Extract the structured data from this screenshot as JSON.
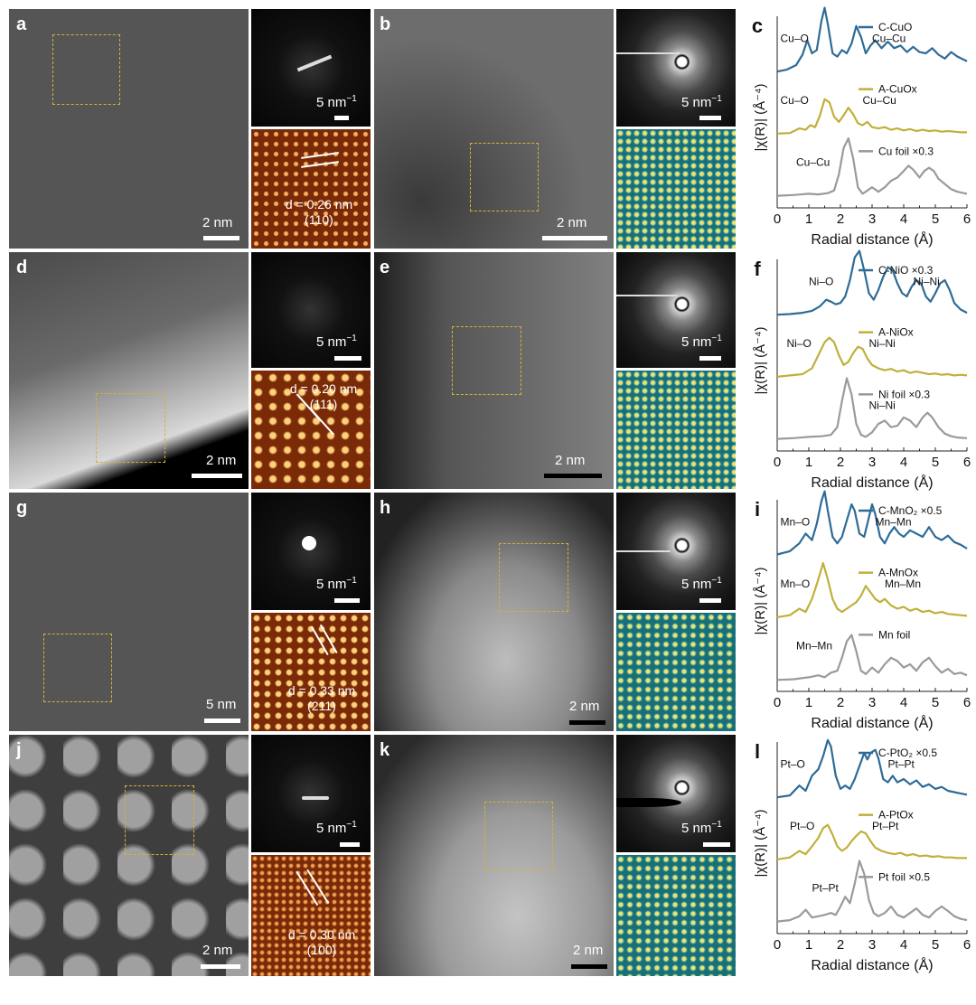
{
  "rows": [
    {
      "stem_crystal": {
        "letter": "a",
        "scale": "2 nm"
      },
      "saed_crystal": {
        "scale": "5 nm",
        "unit_sup": "−1"
      },
      "fft_crystal": {
        "d_label": "d = 0.26 nm",
        "plane": "(110)"
      },
      "stem_amorph": {
        "letter": "b",
        "scale": "2 nm"
      },
      "saed_amorph": {
        "scale": "5 nm",
        "unit_sup": "−1"
      }
    },
    {
      "stem_crystal": {
        "letter": "d",
        "scale": "2 nm"
      },
      "saed_crystal": {
        "scale": "5 nm",
        "unit_sup": "−1"
      },
      "fft_crystal": {
        "d_label": "d = 0.20 nm",
        "plane": "(111)"
      },
      "stem_amorph": {
        "letter": "e",
        "scale": "2 nm"
      },
      "saed_amorph": {
        "scale": "5 nm",
        "unit_sup": "−1"
      }
    },
    {
      "stem_crystal": {
        "letter": "g",
        "scale": "5 nm"
      },
      "saed_crystal": {
        "scale": "5 nm",
        "unit_sup": "−1"
      },
      "fft_crystal": {
        "d_label": "d = 0.33 nm",
        "plane": "(211)"
      },
      "stem_amorph": {
        "letter": "h",
        "scale": "2 nm"
      },
      "saed_amorph": {
        "scale": "5 nm",
        "unit_sup": "−1"
      }
    },
    {
      "stem_crystal": {
        "letter": "j",
        "scale": "2 nm"
      },
      "saed_crystal": {
        "scale": "5 nm",
        "unit_sup": "−1"
      },
      "fft_crystal": {
        "d_label": "d = 0.30 nm",
        "plane": "(100)"
      },
      "stem_amorph": {
        "letter": "k",
        "scale": "2 nm"
      },
      "saed_amorph": {
        "scale": "5 nm",
        "unit_sup": "−1"
      }
    }
  ],
  "colors": {
    "crystalline": "#2e6b96",
    "amorphous": "#c0b03a",
    "foil": "#9a9a9a",
    "box": "#d4b13a",
    "fft_crystal": "#7a2a07",
    "fft_amorph": "#1a6f77"
  },
  "chart_data": [
    {
      "type": "line",
      "letter": "c",
      "xlabel": "Radial distance (Å)",
      "ylabel": "|χ(R)| (Å⁻⁴)",
      "xlim": [
        0,
        6
      ],
      "xticks": [
        0,
        1,
        2,
        3,
        4,
        5,
        6
      ],
      "series": [
        {
          "name": "C-CuO",
          "x": [
            0,
            0.3,
            0.6,
            0.8,
            0.95,
            1.1,
            1.25,
            1.4,
            1.5,
            1.6,
            1.75,
            1.9,
            2.05,
            2.2,
            2.35,
            2.5,
            2.65,
            2.8,
            2.95,
            3.1,
            3.3,
            3.5,
            3.7,
            3.9,
            4.1,
            4.3,
            4.5,
            4.7,
            4.9,
            5.1,
            5.3,
            5.5,
            5.7,
            6.0
          ],
          "y": [
            0.02,
            0.05,
            0.12,
            0.28,
            0.5,
            0.3,
            0.35,
            0.8,
            1.0,
            0.75,
            0.3,
            0.25,
            0.35,
            0.3,
            0.45,
            0.72,
            0.55,
            0.3,
            0.42,
            0.5,
            0.38,
            0.48,
            0.38,
            0.42,
            0.32,
            0.4,
            0.32,
            0.3,
            0.38,
            0.28,
            0.22,
            0.32,
            0.25,
            0.18
          ]
        },
        {
          "name": "A-CuOx",
          "x": [
            0,
            0.4,
            0.7,
            0.9,
            1.05,
            1.2,
            1.35,
            1.5,
            1.65,
            1.8,
            1.95,
            2.1,
            2.25,
            2.4,
            2.55,
            2.7,
            2.85,
            3.0,
            3.2,
            3.4,
            3.6,
            3.8,
            4.0,
            4.2,
            4.4,
            4.6,
            4.8,
            5.0,
            5.2,
            5.4,
            5.6,
            5.8,
            6.0
          ],
          "y": [
            0.02,
            0.03,
            0.1,
            0.08,
            0.15,
            0.12,
            0.3,
            0.55,
            0.5,
            0.28,
            0.2,
            0.3,
            0.42,
            0.32,
            0.18,
            0.15,
            0.2,
            0.12,
            0.1,
            0.12,
            0.08,
            0.1,
            0.07,
            0.09,
            0.06,
            0.08,
            0.06,
            0.07,
            0.05,
            0.06,
            0.05,
            0.04,
            0.04
          ]
        },
        {
          "name": "Cu foil ×0.3",
          "x": [
            0,
            0.5,
            1.0,
            1.3,
            1.6,
            1.8,
            1.95,
            2.1,
            2.25,
            2.4,
            2.55,
            2.7,
            2.85,
            3.0,
            3.2,
            3.4,
            3.6,
            3.8,
            4.0,
            4.15,
            4.3,
            4.5,
            4.65,
            4.8,
            4.95,
            5.1,
            5.3,
            5.5,
            5.7,
            6.0
          ],
          "y": [
            0.02,
            0.03,
            0.05,
            0.04,
            0.06,
            0.1,
            0.35,
            0.75,
            0.9,
            0.6,
            0.15,
            0.05,
            0.1,
            0.15,
            0.08,
            0.15,
            0.25,
            0.3,
            0.4,
            0.48,
            0.42,
            0.3,
            0.4,
            0.45,
            0.4,
            0.28,
            0.2,
            0.12,
            0.08,
            0.05
          ]
        }
      ],
      "annotations": [
        "Cu–O",
        "Cu–Cu",
        "Cu–O",
        "Cu–Cu",
        "Cu–Cu"
      ]
    },
    {
      "type": "line",
      "letter": "f",
      "xlabel": "Radial distance (Å)",
      "ylabel": "|χ(R)| (Å⁻⁴)",
      "xlim": [
        0,
        6
      ],
      "xticks": [
        0,
        1,
        2,
        3,
        4,
        5,
        6
      ],
      "series": [
        {
          "name": "C-NiO ×0.3",
          "x": [
            0,
            0.4,
            0.8,
            1.1,
            1.35,
            1.55,
            1.7,
            1.85,
            2.0,
            2.15,
            2.3,
            2.45,
            2.6,
            2.75,
            2.9,
            3.05,
            3.2,
            3.35,
            3.5,
            3.65,
            3.8,
            3.95,
            4.1,
            4.25,
            4.4,
            4.55,
            4.7,
            4.85,
            5.0,
            5.15,
            5.3,
            5.45,
            5.6,
            5.8,
            6.0
          ],
          "y": [
            0.02,
            0.03,
            0.05,
            0.08,
            0.15,
            0.25,
            0.22,
            0.18,
            0.2,
            0.3,
            0.55,
            0.9,
            1.0,
            0.7,
            0.35,
            0.25,
            0.4,
            0.6,
            0.75,
            0.7,
            0.5,
            0.35,
            0.3,
            0.45,
            0.55,
            0.5,
            0.3,
            0.22,
            0.35,
            0.5,
            0.55,
            0.4,
            0.2,
            0.1,
            0.05
          ]
        },
        {
          "name": "A-NiOx",
          "x": [
            0,
            0.4,
            0.8,
            1.1,
            1.3,
            1.5,
            1.65,
            1.8,
            1.95,
            2.1,
            2.25,
            2.4,
            2.55,
            2.7,
            2.85,
            3.0,
            3.2,
            3.4,
            3.6,
            3.8,
            4.0,
            4.2,
            4.4,
            4.6,
            4.8,
            5.0,
            5.2,
            5.4,
            5.6,
            5.8,
            6.0
          ],
          "y": [
            0.02,
            0.04,
            0.06,
            0.15,
            0.35,
            0.55,
            0.62,
            0.55,
            0.35,
            0.2,
            0.25,
            0.38,
            0.48,
            0.45,
            0.3,
            0.2,
            0.15,
            0.12,
            0.14,
            0.1,
            0.12,
            0.08,
            0.1,
            0.08,
            0.06,
            0.07,
            0.05,
            0.06,
            0.04,
            0.05,
            0.04
          ]
        },
        {
          "name": "Ni foil ×0.3",
          "x": [
            0,
            0.5,
            1.0,
            1.4,
            1.7,
            1.9,
            2.05,
            2.2,
            2.35,
            2.5,
            2.65,
            2.8,
            3.0,
            3.2,
            3.4,
            3.6,
            3.8,
            4.0,
            4.2,
            4.4,
            4.6,
            4.75,
            4.9,
            5.1,
            5.3,
            5.5,
            5.7,
            6.0
          ],
          "y": [
            0.02,
            0.03,
            0.05,
            0.06,
            0.08,
            0.2,
            0.6,
            0.95,
            0.7,
            0.25,
            0.08,
            0.05,
            0.12,
            0.25,
            0.3,
            0.2,
            0.22,
            0.35,
            0.3,
            0.2,
            0.35,
            0.42,
            0.35,
            0.2,
            0.1,
            0.06,
            0.04,
            0.03
          ]
        }
      ],
      "annotations": [
        "Ni–O",
        "Ni–Ni",
        "Ni–O",
        "Ni–Ni",
        "Ni–Ni"
      ]
    },
    {
      "type": "line",
      "letter": "i",
      "xlabel": "Radial distance (Å)",
      "ylabel": "|χ(R)| (Å⁻⁴)",
      "xlim": [
        0,
        6
      ],
      "xticks": [
        0,
        1,
        2,
        3,
        4,
        5,
        6
      ],
      "series": [
        {
          "name": "C-MnO₂ ×0.5",
          "x": [
            0,
            0.4,
            0.7,
            0.9,
            1.1,
            1.25,
            1.4,
            1.5,
            1.6,
            1.75,
            1.9,
            2.05,
            2.2,
            2.35,
            2.45,
            2.6,
            2.75,
            2.9,
            3.0,
            3.1,
            3.25,
            3.4,
            3.55,
            3.7,
            3.85,
            4.0,
            4.2,
            4.4,
            4.6,
            4.8,
            5.0,
            5.2,
            5.4,
            5.6,
            5.8,
            6.0
          ],
          "y": [
            0.03,
            0.08,
            0.2,
            0.35,
            0.25,
            0.5,
            0.85,
            1.0,
            0.7,
            0.3,
            0.2,
            0.3,
            0.55,
            0.8,
            0.7,
            0.35,
            0.3,
            0.6,
            0.8,
            0.65,
            0.3,
            0.2,
            0.35,
            0.45,
            0.35,
            0.3,
            0.4,
            0.35,
            0.3,
            0.45,
            0.3,
            0.25,
            0.32,
            0.22,
            0.18,
            0.12
          ]
        },
        {
          "name": "A-MnOx",
          "x": [
            0,
            0.4,
            0.7,
            0.9,
            1.1,
            1.3,
            1.45,
            1.6,
            1.75,
            1.9,
            2.05,
            2.2,
            2.35,
            2.5,
            2.65,
            2.8,
            2.95,
            3.1,
            3.25,
            3.4,
            3.6,
            3.8,
            4.0,
            4.2,
            4.4,
            4.6,
            4.8,
            5.0,
            5.2,
            5.4,
            5.6,
            5.8,
            6.0
          ],
          "y": [
            0.02,
            0.05,
            0.15,
            0.1,
            0.3,
            0.6,
            0.85,
            0.6,
            0.3,
            0.15,
            0.1,
            0.15,
            0.2,
            0.25,
            0.35,
            0.5,
            0.4,
            0.3,
            0.25,
            0.3,
            0.2,
            0.15,
            0.18,
            0.12,
            0.15,
            0.1,
            0.12,
            0.08,
            0.1,
            0.07,
            0.06,
            0.05,
            0.04
          ]
        },
        {
          "name": "Mn foil",
          "x": [
            0,
            0.5,
            1.0,
            1.3,
            1.5,
            1.7,
            1.9,
            2.05,
            2.2,
            2.35,
            2.5,
            2.65,
            2.8,
            3.0,
            3.2,
            3.4,
            3.6,
            3.8,
            4.0,
            4.2,
            4.4,
            4.6,
            4.8,
            5.0,
            5.2,
            5.4,
            5.6,
            5.8,
            6.0
          ],
          "y": [
            0.01,
            0.02,
            0.05,
            0.08,
            0.05,
            0.12,
            0.15,
            0.35,
            0.6,
            0.7,
            0.45,
            0.15,
            0.1,
            0.2,
            0.12,
            0.25,
            0.35,
            0.3,
            0.2,
            0.25,
            0.15,
            0.28,
            0.35,
            0.22,
            0.12,
            0.18,
            0.1,
            0.12,
            0.08
          ]
        }
      ],
      "annotations": [
        "Mn–O",
        "Mn–Mn",
        "Mn–O",
        "Mn–Mn",
        "Mn–Mn"
      ]
    },
    {
      "type": "line",
      "letter": "l",
      "xlabel": "Radial distance (Å)",
      "ylabel": "|χ(R)| (Å⁻⁴)",
      "xlim": [
        0,
        6
      ],
      "xticks": [
        0,
        1,
        2,
        3,
        4,
        5,
        6
      ],
      "series": [
        {
          "name": "C-PtO₂ ×0.5",
          "x": [
            0,
            0.4,
            0.7,
            0.9,
            1.1,
            1.3,
            1.45,
            1.6,
            1.7,
            1.85,
            2.0,
            2.15,
            2.3,
            2.45,
            2.6,
            2.75,
            2.85,
            2.95,
            3.1,
            3.2,
            3.35,
            3.5,
            3.65,
            3.8,
            4.0,
            4.2,
            4.4,
            4.6,
            4.8,
            5.0,
            5.2,
            5.4,
            5.6,
            5.8,
            6.0
          ],
          "y": [
            0.02,
            0.05,
            0.2,
            0.12,
            0.35,
            0.45,
            0.65,
            0.9,
            0.8,
            0.35,
            0.15,
            0.2,
            0.15,
            0.3,
            0.5,
            0.7,
            0.6,
            0.7,
            0.75,
            0.62,
            0.3,
            0.25,
            0.35,
            0.25,
            0.3,
            0.22,
            0.28,
            0.18,
            0.22,
            0.15,
            0.18,
            0.12,
            0.1,
            0.08,
            0.06
          ]
        },
        {
          "name": "A-PtOx",
          "x": [
            0,
            0.4,
            0.7,
            0.9,
            1.1,
            1.3,
            1.45,
            1.6,
            1.75,
            1.9,
            2.05,
            2.2,
            2.35,
            2.5,
            2.65,
            2.8,
            2.95,
            3.1,
            3.3,
            3.5,
            3.7,
            3.9,
            4.1,
            4.3,
            4.5,
            4.7,
            4.9,
            5.1,
            5.3,
            5.5,
            5.7,
            6.0
          ],
          "y": [
            0.02,
            0.05,
            0.15,
            0.1,
            0.22,
            0.35,
            0.5,
            0.55,
            0.4,
            0.22,
            0.15,
            0.2,
            0.3,
            0.38,
            0.45,
            0.42,
            0.3,
            0.2,
            0.15,
            0.12,
            0.1,
            0.12,
            0.08,
            0.1,
            0.07,
            0.08,
            0.06,
            0.07,
            0.05,
            0.05,
            0.04,
            0.04
          ]
        },
        {
          "name": "Pt foil ×0.5",
          "x": [
            0,
            0.4,
            0.7,
            0.9,
            1.1,
            1.3,
            1.5,
            1.7,
            1.85,
            2.0,
            2.15,
            2.3,
            2.45,
            2.6,
            2.75,
            2.9,
            3.05,
            3.2,
            3.4,
            3.6,
            3.8,
            4.0,
            4.2,
            4.4,
            4.6,
            4.8,
            5.0,
            5.2,
            5.4,
            5.6,
            5.8,
            6.0
          ],
          "y": [
            0.02,
            0.04,
            0.1,
            0.2,
            0.08,
            0.1,
            0.12,
            0.15,
            0.12,
            0.25,
            0.4,
            0.3,
            0.6,
            0.95,
            0.75,
            0.35,
            0.15,
            0.1,
            0.15,
            0.25,
            0.12,
            0.08,
            0.15,
            0.22,
            0.12,
            0.08,
            0.18,
            0.25,
            0.18,
            0.1,
            0.06,
            0.04
          ]
        }
      ],
      "annotations": [
        "Pt–O",
        "Pt–Pt",
        "Pt–O",
        "Pt–Pt",
        "Pt–Pt"
      ]
    }
  ]
}
